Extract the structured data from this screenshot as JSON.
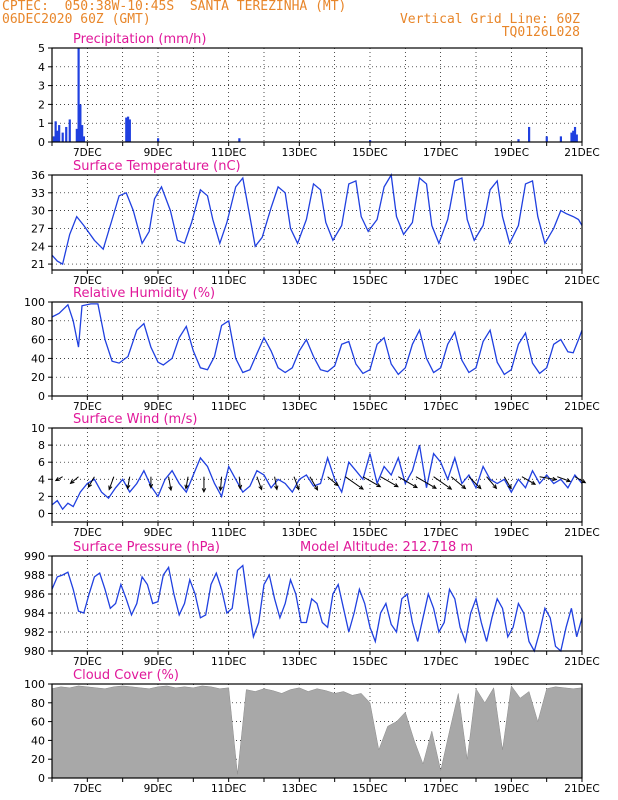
{
  "header": {
    "line1_left": "CPTEC:  050:38W-10:45S  SANTA TEREZINHA (MT)",
    "line2_left": "06DEC2020 60Z (GMT)",
    "line2_right": "Vertical Grid Line: 60Z",
    "line3_right": "TQ0126L028"
  },
  "colors": {
    "header": "#e8862a",
    "title": "#e0189a",
    "series": "#2040e0",
    "cloud": "#a8a8a8",
    "wind_arrow": "#000000"
  },
  "chart_data": [
    {
      "type": "bar",
      "title": "Precipitation (mm/h)",
      "xticks": [
        "7DEC",
        "9DEC",
        "11DEC",
        "13DEC",
        "15DEC",
        "17DEC",
        "19DEC",
        "21DEC"
      ],
      "xlim": [
        6.0,
        21.0
      ],
      "ylim": [
        0,
        5
      ],
      "yticks": [
        0,
        1,
        2,
        3,
        4,
        5
      ],
      "grid": true,
      "x": [
        6.05,
        6.1,
        6.15,
        6.2,
        6.3,
        6.4,
        6.5,
        6.7,
        6.75,
        6.8,
        6.85,
        6.9,
        8.1,
        8.15,
        8.2,
        9.0,
        11.3,
        15.0,
        19.2,
        19.5,
        20.0,
        20.4,
        20.7,
        20.75,
        20.8,
        20.85
      ],
      "values": [
        0.3,
        1.1,
        0.6,
        0.9,
        0.5,
        0.8,
        1.2,
        0.7,
        5.0,
        2.0,
        0.9,
        0.3,
        1.3,
        1.35,
        1.2,
        0.2,
        0.2,
        0.1,
        0.15,
        0.8,
        0.3,
        0.3,
        0.5,
        0.6,
        0.8,
        0.4
      ]
    },
    {
      "type": "line",
      "title": "Surface Temperature (nC)",
      "xticks": [
        "7DEC",
        "9DEC",
        "11DEC",
        "13DEC",
        "15DEC",
        "17DEC",
        "19DEC",
        "21DEC"
      ],
      "xlim": [
        6.0,
        21.0
      ],
      "ylim": [
        20,
        36
      ],
      "yticks": [
        21,
        24,
        27,
        30,
        33,
        36
      ],
      "grid": true,
      "x": [
        6.0,
        6.15,
        6.3,
        6.5,
        6.7,
        6.9,
        7.2,
        7.45,
        7.7,
        7.9,
        8.1,
        8.3,
        8.55,
        8.75,
        8.9,
        9.1,
        9.35,
        9.55,
        9.75,
        9.95,
        10.2,
        10.4,
        10.55,
        10.75,
        10.95,
        11.2,
        11.4,
        11.6,
        11.75,
        11.95,
        12.2,
        12.4,
        12.6,
        12.75,
        12.95,
        13.2,
        13.4,
        13.6,
        13.75,
        13.95,
        14.2,
        14.4,
        14.6,
        14.75,
        14.95,
        15.2,
        15.4,
        15.6,
        15.75,
        15.95,
        16.2,
        16.4,
        16.6,
        16.75,
        16.95,
        17.2,
        17.4,
        17.6,
        17.75,
        17.95,
        18.2,
        18.4,
        18.6,
        18.75,
        18.95,
        19.2,
        19.4,
        19.6,
        19.75,
        19.95,
        20.2,
        20.4,
        20.55,
        20.75,
        20.9,
        21.0
      ],
      "values": [
        22.5,
        21.5,
        21.0,
        26.0,
        29.0,
        27.5,
        25.0,
        23.5,
        28.5,
        32.5,
        33.0,
        30.0,
        24.5,
        26.5,
        32.0,
        34.0,
        30.0,
        25.0,
        24.5,
        28.0,
        33.5,
        32.5,
        28.5,
        24.5,
        28.0,
        34.0,
        35.5,
        29.0,
        24.0,
        25.5,
        30.5,
        34.0,
        33.0,
        27.0,
        24.5,
        28.5,
        34.5,
        33.5,
        28.0,
        25.0,
        27.5,
        34.5,
        35.0,
        29.0,
        26.5,
        28.5,
        34.0,
        36.0,
        29.0,
        26.0,
        28.0,
        35.5,
        34.5,
        27.5,
        24.5,
        28.5,
        35.0,
        35.5,
        28.5,
        25.0,
        27.5,
        33.5,
        35.0,
        29.0,
        24.5,
        27.5,
        34.5,
        35.0,
        29.0,
        24.5,
        27.0,
        30.0,
        29.5,
        29.0,
        28.5,
        27.5
      ]
    },
    {
      "type": "line",
      "title": "Relative Humidity (%)",
      "xticks": [
        "7DEC",
        "9DEC",
        "11DEC",
        "13DEC",
        "15DEC",
        "17DEC",
        "19DEC",
        "21DEC"
      ],
      "xlim": [
        6.0,
        21.0
      ],
      "ylim": [
        0,
        100
      ],
      "yticks": [
        0,
        20,
        40,
        60,
        80,
        100
      ],
      "grid": true,
      "x": [
        6.0,
        6.2,
        6.45,
        6.6,
        6.75,
        6.85,
        7.1,
        7.3,
        7.5,
        7.7,
        7.9,
        8.15,
        8.4,
        8.6,
        8.8,
        9.0,
        9.15,
        9.4,
        9.6,
        9.8,
        10.0,
        10.2,
        10.4,
        10.6,
        10.8,
        11.0,
        11.2,
        11.4,
        11.6,
        11.8,
        12.0,
        12.2,
        12.4,
        12.6,
        12.8,
        13.0,
        13.2,
        13.4,
        13.6,
        13.8,
        14.0,
        14.2,
        14.4,
        14.6,
        14.8,
        15.0,
        15.2,
        15.4,
        15.6,
        15.8,
        16.0,
        16.2,
        16.4,
        16.6,
        16.8,
        17.0,
        17.2,
        17.4,
        17.6,
        17.8,
        18.0,
        18.2,
        18.4,
        18.6,
        18.8,
        19.0,
        19.2,
        19.4,
        19.6,
        19.8,
        20.0,
        20.2,
        20.4,
        20.6,
        20.75,
        20.9,
        21.0
      ],
      "values": [
        84,
        88,
        97,
        80,
        52,
        96,
        98,
        98,
        60,
        37,
        35,
        42,
        70,
        77,
        52,
        36,
        33,
        40,
        62,
        74,
        48,
        30,
        28,
        42,
        75,
        80,
        40,
        25,
        28,
        45,
        62,
        48,
        30,
        25,
        30,
        48,
        60,
        42,
        28,
        26,
        32,
        55,
        58,
        34,
        24,
        28,
        55,
        62,
        34,
        23,
        30,
        55,
        70,
        40,
        25,
        30,
        55,
        68,
        38,
        25,
        30,
        58,
        70,
        36,
        23,
        28,
        55,
        67,
        35,
        24,
        30,
        55,
        60,
        47,
        46,
        60,
        70
      ]
    },
    {
      "type": "line",
      "title": "Surface Wind (m/s)",
      "xticks": [
        "7DEC",
        "9DEC",
        "11DEC",
        "13DEC",
        "15DEC",
        "17DEC",
        "19DEC",
        "21DEC"
      ],
      "xlim": [
        6.0,
        21.0
      ],
      "ylim": [
        -1,
        10
      ],
      "yticks": [
        0,
        2,
        4,
        6,
        8,
        10
      ],
      "grid": true,
      "x": [
        6.0,
        6.15,
        6.3,
        6.45,
        6.6,
        6.8,
        7.0,
        7.2,
        7.4,
        7.6,
        7.8,
        8.0,
        8.2,
        8.4,
        8.6,
        8.8,
        9.0,
        9.2,
        9.4,
        9.6,
        9.8,
        10.0,
        10.2,
        10.4,
        10.6,
        10.8,
        11.0,
        11.2,
        11.4,
        11.6,
        11.8,
        12.0,
        12.2,
        12.4,
        12.6,
        12.8,
        13.0,
        13.2,
        13.4,
        13.6,
        13.8,
        14.0,
        14.2,
        14.4,
        14.6,
        14.8,
        15.0,
        15.2,
        15.4,
        15.6,
        15.8,
        16.0,
        16.2,
        16.4,
        16.6,
        16.8,
        17.0,
        17.2,
        17.4,
        17.6,
        17.8,
        18.0,
        18.2,
        18.4,
        18.6,
        18.8,
        19.0,
        19.2,
        19.4,
        19.6,
        19.8,
        20.0,
        20.2,
        20.4,
        20.6,
        20.8,
        21.0
      ],
      "values": [
        1.0,
        1.5,
        0.5,
        1.2,
        0.8,
        2.5,
        3.5,
        4.0,
        2.5,
        1.8,
        3.0,
        4.0,
        2.5,
        3.5,
        5.0,
        3.2,
        2.0,
        4.0,
        5.0,
        3.5,
        2.5,
        4.5,
        6.5,
        5.5,
        3.5,
        2.0,
        5.5,
        4.0,
        2.5,
        3.2,
        5.0,
        4.5,
        3.0,
        4.0,
        3.5,
        2.5,
        4.0,
        4.5,
        3.2,
        3.5,
        6.5,
        4.0,
        2.5,
        6.0,
        5.0,
        4.0,
        7.0,
        3.5,
        5.5,
        4.5,
        6.5,
        3.5,
        5.0,
        8.0,
        3.0,
        7.0,
        6.0,
        4.0,
        6.5,
        3.5,
        4.5,
        3.0,
        5.5,
        4.0,
        3.5,
        4.0,
        2.5,
        4.0,
        3.0,
        5.0,
        3.5,
        4.5,
        3.5,
        4.0,
        3.0,
        4.5,
        3.5
      ],
      "arrows_x": [
        6.3,
        6.75,
        7.2,
        7.75,
        8.2,
        8.8,
        9.3,
        9.85,
        10.3,
        10.8,
        11.3,
        11.8,
        12.3,
        12.85,
        13.3,
        13.8,
        14.3,
        14.8,
        15.3,
        15.8,
        16.3,
        16.8,
        17.3,
        17.8,
        18.3,
        18.8,
        19.3,
        19.8,
        20.3,
        20.8
      ],
      "arrows_speed": [
        1.2,
        2.0,
        2.5,
        3.0,
        2.5,
        2.2,
        3.0,
        2.5,
        3.5,
        3.0,
        2.5,
        3.0,
        2.8,
        3.0,
        3.5,
        3.0,
        5.5,
        5.0,
        5.0,
        5.5,
        6.0,
        5.5,
        4.5,
        4.0,
        3.5,
        3.0,
        3.5,
        4.0,
        3.0,
        2.5
      ],
      "arrows_dir_deg": [
        30,
        40,
        60,
        70,
        80,
        90,
        100,
        80,
        90,
        85,
        95,
        110,
        100,
        110,
        120,
        140,
        145,
        150,
        150,
        150,
        150,
        145,
        140,
        135,
        130,
        120,
        150,
        170,
        160,
        150
      ]
    },
    {
      "type": "line",
      "title": "Surface Pressure (hPa)",
      "annotation": "Model Altitude: 212.718 m",
      "xticks": [
        "7DEC",
        "9DEC",
        "11DEC",
        "13DEC",
        "15DEC",
        "17DEC",
        "19DEC",
        "21DEC"
      ],
      "xlim": [
        6.0,
        21.0
      ],
      "ylim": [
        980,
        990
      ],
      "yticks": [
        980,
        982,
        984,
        986,
        988,
        990
      ],
      "grid": true,
      "x": [
        6.0,
        6.15,
        6.3,
        6.45,
        6.6,
        6.75,
        6.9,
        7.05,
        7.2,
        7.35,
        7.5,
        7.65,
        7.8,
        7.95,
        8.1,
        8.25,
        8.4,
        8.55,
        8.7,
        8.85,
        9.0,
        9.15,
        9.3,
        9.45,
        9.6,
        9.75,
        9.9,
        10.05,
        10.2,
        10.35,
        10.5,
        10.65,
        10.8,
        10.95,
        11.1,
        11.25,
        11.4,
        11.55,
        11.7,
        11.85,
        12.0,
        12.15,
        12.3,
        12.45,
        12.6,
        12.75,
        12.9,
        13.05,
        13.2,
        13.35,
        13.5,
        13.65,
        13.8,
        13.95,
        14.1,
        14.25,
        14.4,
        14.55,
        14.7,
        14.85,
        15.0,
        15.15,
        15.3,
        15.45,
        15.6,
        15.75,
        15.9,
        16.05,
        16.2,
        16.35,
        16.5,
        16.65,
        16.8,
        16.95,
        17.1,
        17.25,
        17.4,
        17.55,
        17.7,
        17.85,
        18.0,
        18.15,
        18.3,
        18.45,
        18.6,
        18.75,
        18.9,
        19.05,
        19.2,
        19.35,
        19.5,
        19.65,
        19.8,
        19.95,
        20.1,
        20.25,
        20.4,
        20.55,
        20.7,
        20.85,
        21.0
      ],
      "values": [
        986.5,
        987.8,
        988.0,
        988.3,
        986.5,
        984.2,
        984.0,
        986.0,
        987.8,
        988.2,
        986.5,
        984.5,
        985.0,
        987.0,
        985.5,
        983.8,
        985.0,
        987.8,
        987.0,
        985.0,
        985.2,
        988.0,
        988.8,
        986.0,
        983.8,
        985.0,
        987.5,
        986.0,
        983.5,
        983.8,
        987.0,
        988.2,
        986.5,
        984.0,
        984.5,
        988.5,
        989.0,
        985.0,
        981.5,
        983.0,
        987.0,
        988.0,
        985.5,
        983.5,
        985.0,
        987.5,
        986.0,
        983.0,
        983.0,
        985.5,
        985.0,
        983.0,
        982.5,
        986.0,
        987.0,
        984.5,
        982.0,
        984.0,
        986.5,
        985.0,
        982.5,
        981.0,
        984.0,
        985.0,
        982.8,
        982.0,
        985.5,
        986.0,
        983.0,
        981.0,
        983.5,
        986.0,
        984.5,
        982.0,
        983.0,
        986.5,
        985.5,
        982.5,
        981.0,
        984.0,
        985.5,
        983.0,
        981.0,
        983.5,
        985.5,
        984.5,
        981.5,
        982.5,
        985.0,
        984.0,
        981.0,
        980.0,
        982.0,
        984.5,
        983.5,
        980.5,
        980.0,
        982.5,
        984.5,
        981.5,
        983.5
      ]
    },
    {
      "type": "area",
      "title": "Cloud Cover (%)",
      "xticks": [
        "7DEC",
        "9DEC",
        "11DEC",
        "13DEC",
        "15DEC",
        "17DEC",
        "19DEC",
        "21DEC"
      ],
      "xlim": [
        6.0,
        21.0
      ],
      "ylim": [
        0,
        100
      ],
      "yticks": [
        0,
        20,
        40,
        60,
        80,
        100
      ],
      "grid": true,
      "x": [
        6.0,
        6.25,
        6.5,
        6.75,
        7.0,
        7.25,
        7.5,
        7.75,
        8.0,
        8.25,
        8.5,
        8.75,
        9.0,
        9.25,
        9.5,
        9.75,
        10.0,
        10.25,
        10.5,
        10.75,
        11.0,
        11.25,
        11.5,
        11.75,
        12.0,
        12.25,
        12.5,
        12.75,
        13.0,
        13.25,
        13.5,
        13.75,
        14.0,
        14.25,
        14.5,
        14.75,
        15.0,
        15.25,
        15.5,
        15.75,
        16.0,
        16.25,
        16.5,
        16.75,
        17.0,
        17.25,
        17.5,
        17.75,
        18.0,
        18.25,
        18.5,
        18.75,
        19.0,
        19.25,
        19.5,
        19.75,
        20.0,
        20.25,
        20.5,
        20.75,
        21.0
      ],
      "values": [
        95,
        97,
        96,
        98,
        97,
        96,
        95,
        97,
        98,
        97,
        96,
        95,
        97,
        98,
        96,
        97,
        96,
        98,
        97,
        95,
        96,
        4,
        94,
        92,
        95,
        93,
        90,
        94,
        96,
        92,
        95,
        93,
        90,
        92,
        88,
        90,
        80,
        30,
        55,
        60,
        70,
        40,
        15,
        50,
        8,
        50,
        90,
        20,
        95,
        80,
        96,
        30,
        98,
        85,
        92,
        60,
        95,
        97,
        96,
        95,
        96
      ]
    }
  ]
}
